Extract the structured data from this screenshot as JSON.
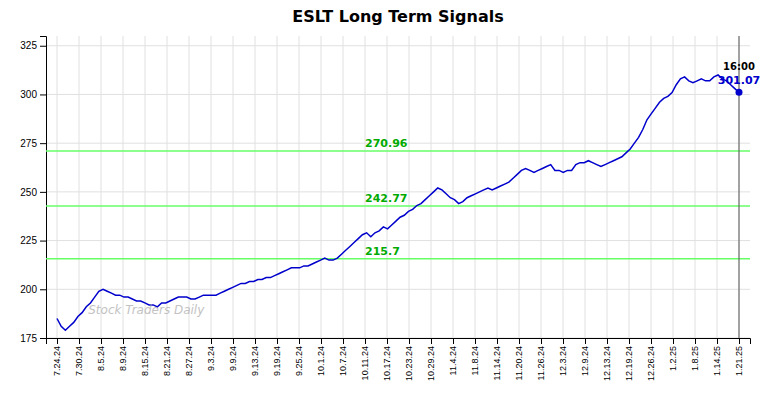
{
  "chart_data": {
    "type": "line",
    "title": "ESLT Long Term Signals",
    "watermark": "Stock Traders Daily",
    "color": "#0000cc",
    "xlim": [
      -0.5,
      31.5
    ],
    "xticks": [
      {
        "value": 0,
        "label": "7.24.24"
      },
      {
        "value": 1,
        "label": "7.30.24"
      },
      {
        "value": 2,
        "label": "8.5.24"
      },
      {
        "value": 3,
        "label": "8.9.24"
      },
      {
        "value": 4,
        "label": "8.15.24"
      },
      {
        "value": 5,
        "label": "8.21.24"
      },
      {
        "value": 6,
        "label": "8.27.24"
      },
      {
        "value": 7,
        "label": "9.3.24"
      },
      {
        "value": 8,
        "label": "9.9.24"
      },
      {
        "value": 9,
        "label": "9.13.24"
      },
      {
        "value": 10,
        "label": "9.19.24"
      },
      {
        "value": 11,
        "label": "9.25.24"
      },
      {
        "value": 12,
        "label": "10.1.24"
      },
      {
        "value": 13,
        "label": "10.7.24"
      },
      {
        "value": 14,
        "label": "10.11.24"
      },
      {
        "value": 15,
        "label": "10.17.24"
      },
      {
        "value": 16,
        "label": "10.23.24"
      },
      {
        "value": 17,
        "label": "10.29.24"
      },
      {
        "value": 18,
        "label": "11.4.24"
      },
      {
        "value": 19,
        "label": "11.8.24"
      },
      {
        "value": 20,
        "label": "11.14.24"
      },
      {
        "value": 21,
        "label": "11.20.24"
      },
      {
        "value": 22,
        "label": "11.26.24"
      },
      {
        "value": 23,
        "label": "12.3.24"
      },
      {
        "value": 24,
        "label": "12.9.24"
      },
      {
        "value": 25,
        "label": "12.13.24"
      },
      {
        "value": 26,
        "label": "12.19.24"
      },
      {
        "value": 27,
        "label": "12.26.24"
      },
      {
        "value": 28,
        "label": "1.2.25"
      },
      {
        "value": 29,
        "label": "1.8.25"
      },
      {
        "value": 30,
        "label": "1.14.25"
      },
      {
        "value": 31,
        "label": "1.21.25"
      }
    ],
    "ylim": [
      175,
      330
    ],
    "yticks": [
      175,
      200,
      225,
      250,
      275,
      300,
      325
    ],
    "grid": true,
    "values": [
      185,
      181,
      179,
      181,
      183,
      186,
      188,
      191,
      193,
      196,
      199,
      200,
      199,
      198,
      197,
      197,
      196,
      196,
      195,
      194,
      194,
      193,
      192,
      192,
      191,
      193,
      193,
      194,
      195,
      196,
      196,
      196,
      195,
      195,
      196,
      197,
      197,
      197,
      197,
      198,
      199,
      200,
      201,
      202,
      203,
      203,
      204,
      204,
      205,
      205,
      206,
      206,
      207,
      208,
      209,
      210,
      211,
      211,
      211,
      212,
      212,
      213,
      214,
      215,
      216,
      215,
      215,
      216,
      218,
      220,
      222,
      224,
      226,
      228,
      229,
      227,
      229,
      230,
      232,
      231,
      233,
      235,
      237,
      238,
      240,
      241,
      243,
      244,
      246,
      248,
      250,
      252,
      251,
      249,
      247,
      246,
      244,
      245,
      247,
      248,
      249,
      250,
      251,
      252,
      251,
      252,
      253,
      254,
      255,
      257,
      259,
      261,
      262,
      261,
      260,
      261,
      262,
      263,
      264,
      261,
      261,
      260,
      261,
      261,
      264,
      265,
      265,
      266,
      265,
      264,
      263,
      264,
      265,
      266,
      267,
      268,
      270,
      272,
      275,
      278,
      282,
      287,
      290,
      293,
      296,
      298,
      299,
      301,
      305,
      308,
      309,
      307,
      306,
      307,
      308,
      307,
      307,
      309,
      310,
      308,
      307,
      305,
      303,
      301.07
    ],
    "reference_lines": {
      "values": [
        215.7,
        242.77,
        270.96
      ],
      "color": "#66ff66",
      "label_color": "#00aa00"
    },
    "annotations": [
      "16:00",
      "301.07"
    ]
  }
}
